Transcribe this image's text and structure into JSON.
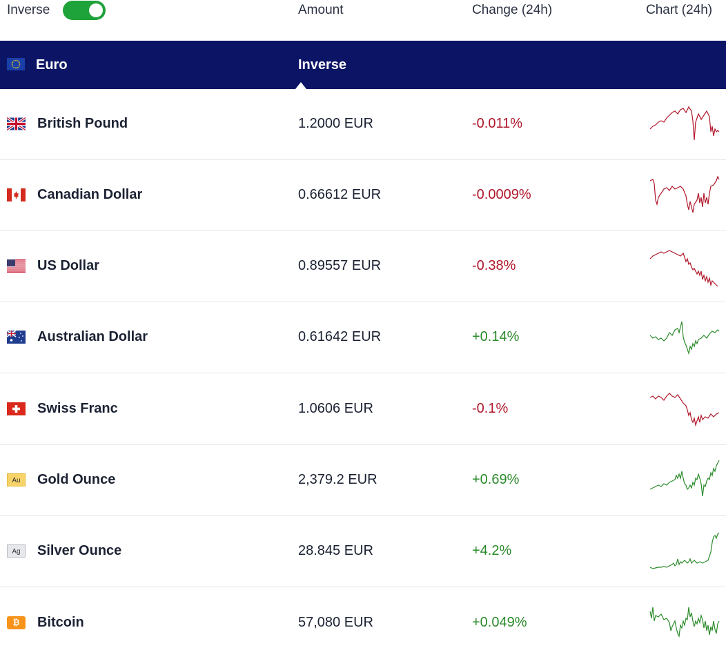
{
  "header": {
    "inverse_label": "Inverse",
    "inverse_enabled": true,
    "amount_label": "Amount",
    "change_label": "Change (24h)",
    "chart_label": "Chart (24h)"
  },
  "base": {
    "currency": "Euro",
    "mode_label": "Inverse"
  },
  "rows": [
    {
      "name": "British Pound",
      "amount": "1.2000 EUR",
      "change": "-0.011%",
      "trend": "down",
      "icon": "flag-gb-icon"
    },
    {
      "name": "Canadian Dollar",
      "amount": "0.66612 EUR",
      "change": "-0.0009%",
      "trend": "down",
      "icon": "flag-ca-icon"
    },
    {
      "name": "US Dollar",
      "amount": "0.89557 EUR",
      "change": "-0.38%",
      "trend": "down",
      "icon": "flag-us-icon"
    },
    {
      "name": "Australian Dollar",
      "amount": "0.61642 EUR",
      "change": "+0.14%",
      "trend": "up",
      "icon": "flag-au-icon"
    },
    {
      "name": "Swiss Franc",
      "amount": "1.0606 EUR",
      "change": "-0.1%",
      "trend": "down",
      "icon": "flag-ch-icon"
    },
    {
      "name": "Gold Ounce",
      "amount": "2,379.2 EUR",
      "change": "+0.69%",
      "trend": "up",
      "icon": "gold-au-icon",
      "badge": "Au"
    },
    {
      "name": "Silver Ounce",
      "amount": "28.845 EUR",
      "change": "+4.2%",
      "trend": "up",
      "icon": "silver-ag-icon",
      "badge": "Ag"
    },
    {
      "name": "Bitcoin",
      "amount": "57,080 EUR",
      "change": "+0.049%",
      "trend": "up",
      "icon": "bitcoin-icon",
      "badge": "₿"
    }
  ],
  "colors": {
    "negative": "#b0162a",
    "positive": "#2a8a2a",
    "base_bar": "#0c1565",
    "toggle": "#1ea33a"
  }
}
